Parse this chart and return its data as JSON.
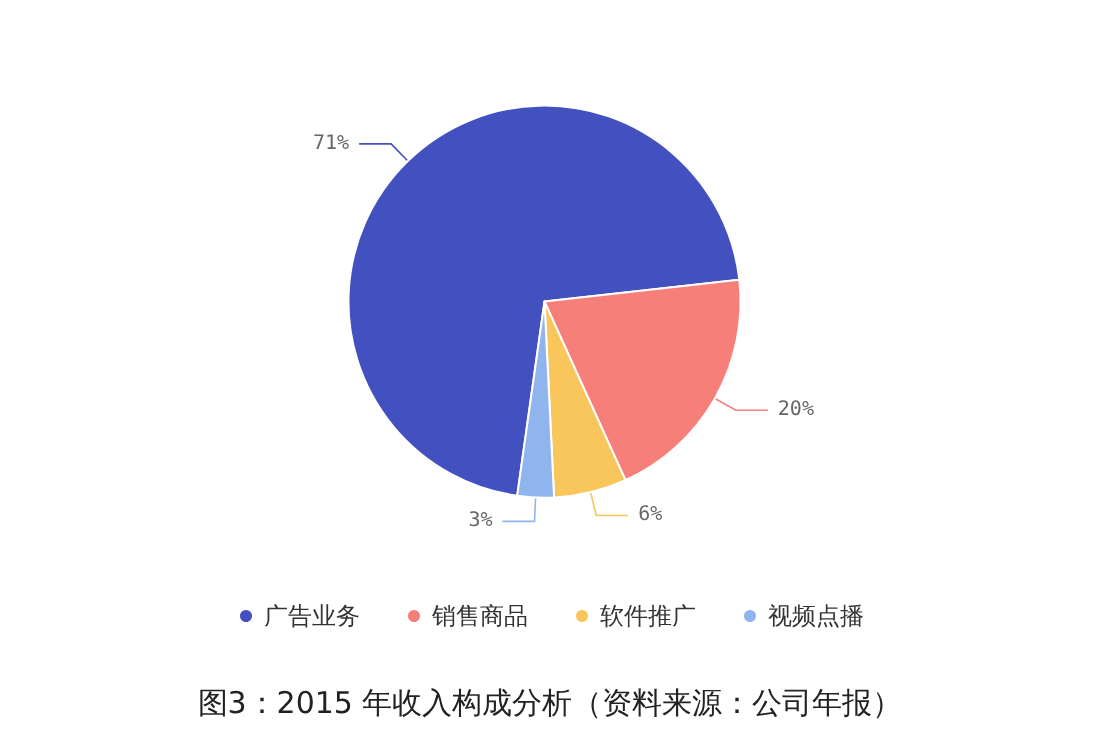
{
  "chart_data": {
    "type": "pie",
    "categories": [
      "广告业务",
      "销售商品",
      "软件推广",
      "视频点播"
    ],
    "values": [
      71,
      20,
      6,
      3
    ],
    "value_labels": [
      "71%",
      "20%",
      "6%",
      "3%"
    ],
    "colors": [
      "#4350c0",
      "#f77f7a",
      "#f8c65a",
      "#8fb4ee"
    ],
    "legend": "bottom",
    "annotations": [
      "图3：2015 年收入构成分析（资料来源：公司年报）"
    ]
  }
}
